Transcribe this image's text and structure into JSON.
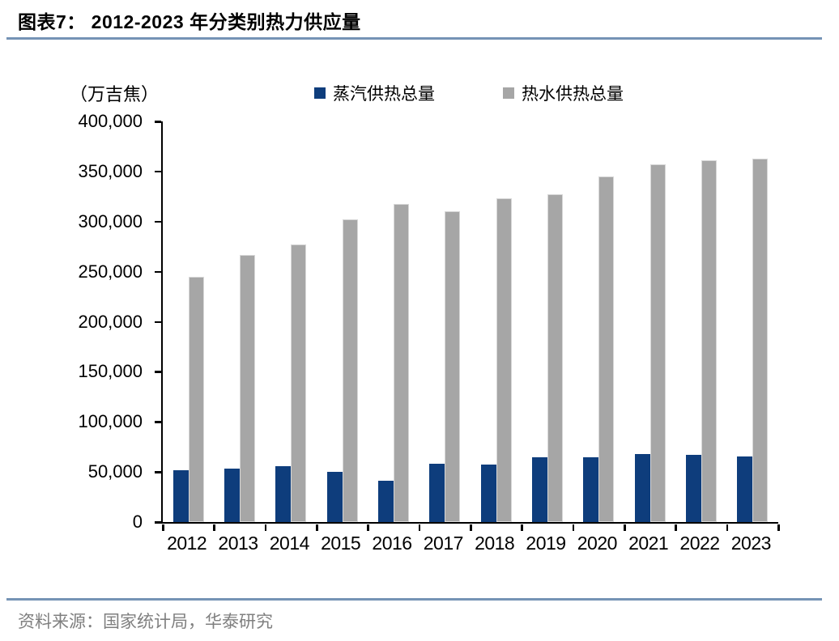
{
  "page": {
    "title": "图表7： 2012-2023 年分类别热力供应量",
    "source": "资料来源：国家统计局，华泰研究"
  },
  "chart_data": {
    "type": "bar",
    "title": "2012-2023 年分类别热力供应量",
    "unit_label": "（万吉焦）",
    "categories": [
      "2012",
      "2013",
      "2014",
      "2015",
      "2016",
      "2017",
      "2018",
      "2019",
      "2020",
      "2021",
      "2022",
      "2023"
    ],
    "series": [
      {
        "name": "蒸汽供热总量",
        "color": "#0E3D7C",
        "values": [
          51500,
          53000,
          56000,
          50000,
          41500,
          58000,
          57500,
          65000,
          65000,
          68000,
          67000,
          65500
        ]
      },
      {
        "name": "热水供热总量",
        "color": "#A6A6A6",
        "values": [
          244500,
          267000,
          277000,
          302000,
          317500,
          310000,
          323500,
          327500,
          345000,
          357500,
          361000,
          363000
        ]
      }
    ],
    "ylim": [
      0,
      400000
    ],
    "y_tick_step": 50000,
    "y_tick_labels": [
      "0",
      "50,000",
      "100,000",
      "150,000",
      "200,000",
      "250,000",
      "300,000",
      "350,000",
      "400,000"
    ],
    "grid": false,
    "legend_position": "top"
  },
  "colors": {
    "accent_rule": "#7593B5",
    "axis": "#000000",
    "steam_bar": "#0E3D7C",
    "hot_water_bar": "#A6A6A6",
    "source_text": "#7F7F7F"
  }
}
